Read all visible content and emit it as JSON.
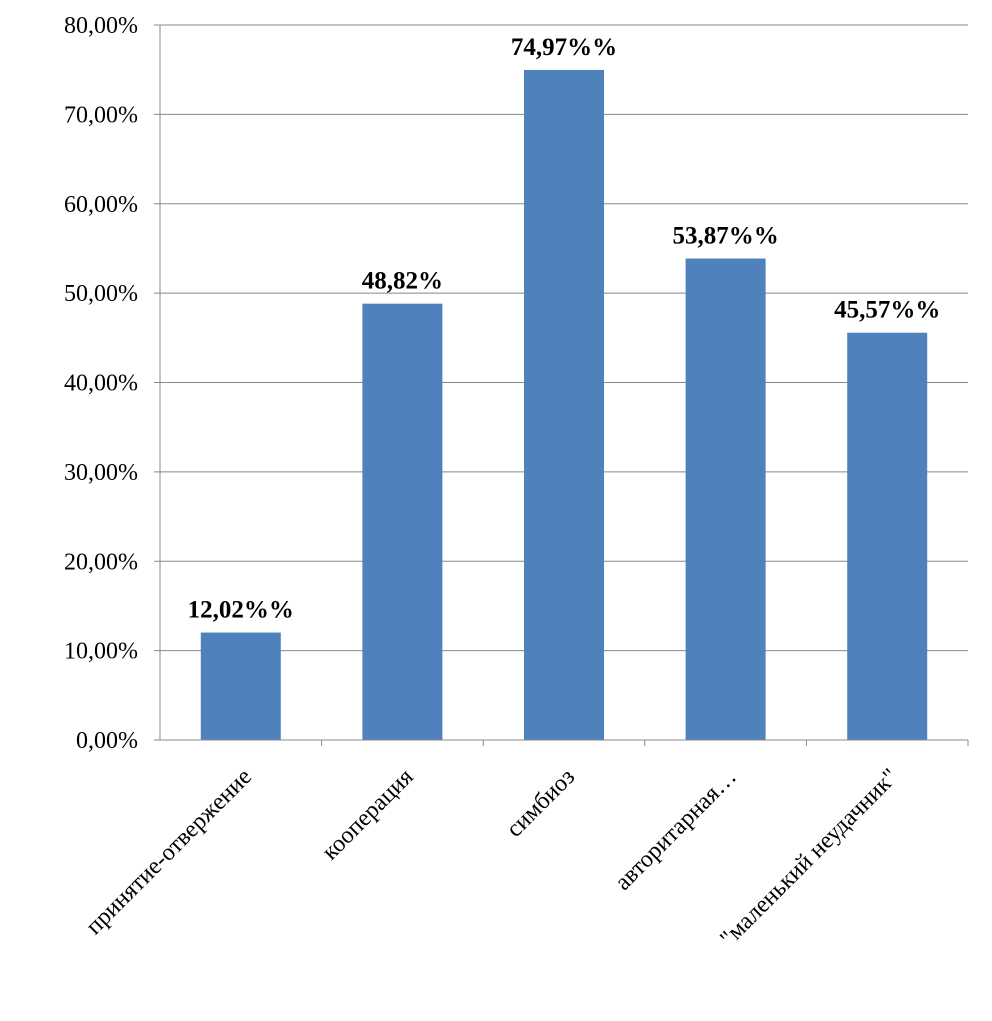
{
  "chart_data": {
    "type": "bar",
    "categories": [
      "принятие-отвержение",
      "кооперация",
      "симбиоз",
      "авторитарная…",
      "\"маленький неудачник\""
    ],
    "values": [
      12.02,
      48.82,
      74.97,
      53.87,
      45.57
    ],
    "data_labels": [
      "12,02%%",
      "48,82%",
      "74,97%%",
      "53,87%%",
      "45,57%%"
    ],
    "y_tick_labels": [
      "0,00%",
      "10,00%",
      "20,00%",
      "30,00%",
      "40,00%",
      "50,00%",
      "60,00%",
      "70,00%",
      "80,00%"
    ],
    "ylim": [
      0,
      80
    ],
    "y_tick_step": 10,
    "grid": true,
    "legend": "none",
    "title": "",
    "xlabel": "",
    "ylabel": "",
    "bar_color": "#4F81BD",
    "grid_color": "#888888"
  }
}
